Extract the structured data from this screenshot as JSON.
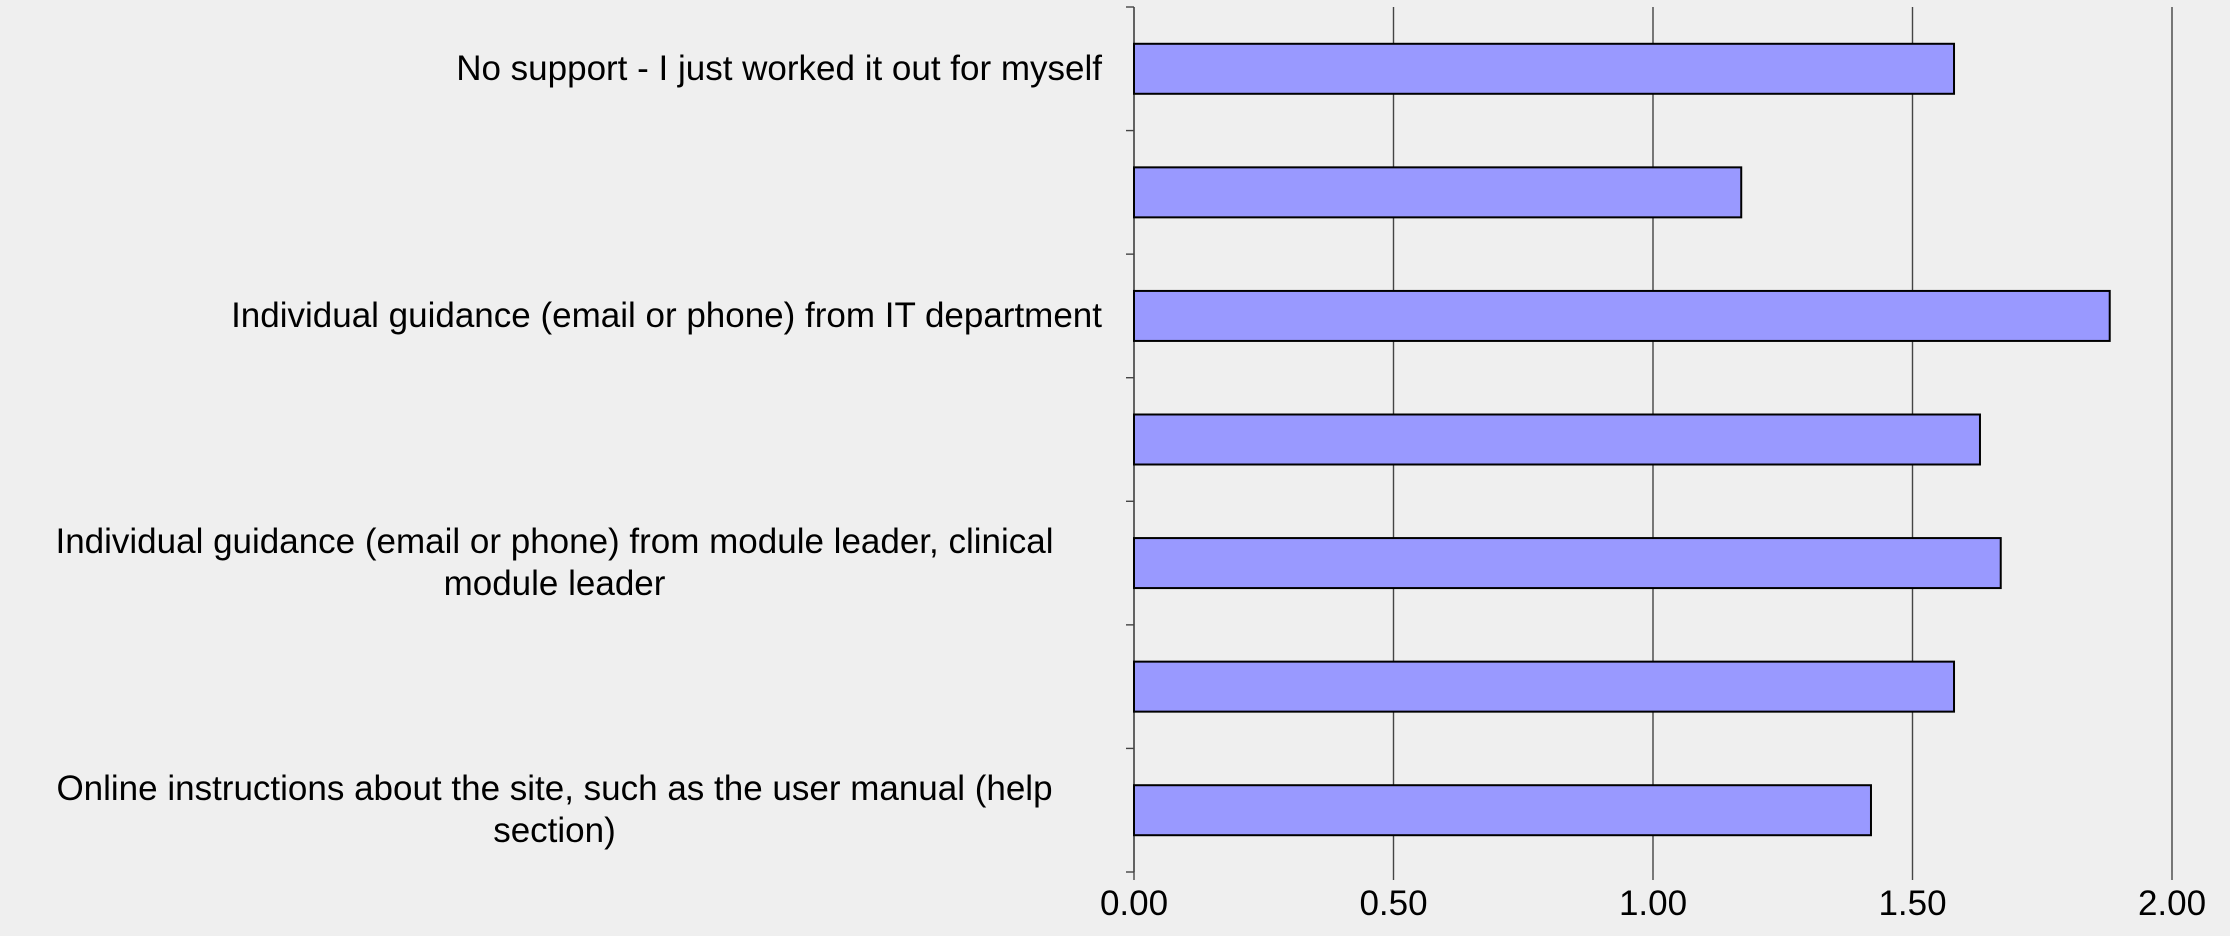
{
  "chart_data": {
    "type": "bar",
    "orientation": "horizontal",
    "categories": [
      "No support - I just worked it out for myself",
      null,
      "Individual guidance (email or phone) from IT department",
      null,
      "Individual guidance (email  or phone) from module leader, clinical module leader",
      null,
      "Online instructions about the site, such as the user manual (help section)"
    ],
    "values": [
      1.58,
      1.17,
      1.88,
      1.63,
      1.67,
      1.58,
      1.42
    ],
    "color": "#9999ff",
    "xlim": [
      0,
      2
    ],
    "xticks": [
      {
        "value": 0,
        "label": "0.00"
      },
      {
        "value": 0.5,
        "label": "0.50"
      },
      {
        "value": 1,
        "label": "1.00"
      },
      {
        "value": 1.5,
        "label": "1.50"
      },
      {
        "value": 2,
        "label": "2.00"
      }
    ],
    "grid": true
  }
}
